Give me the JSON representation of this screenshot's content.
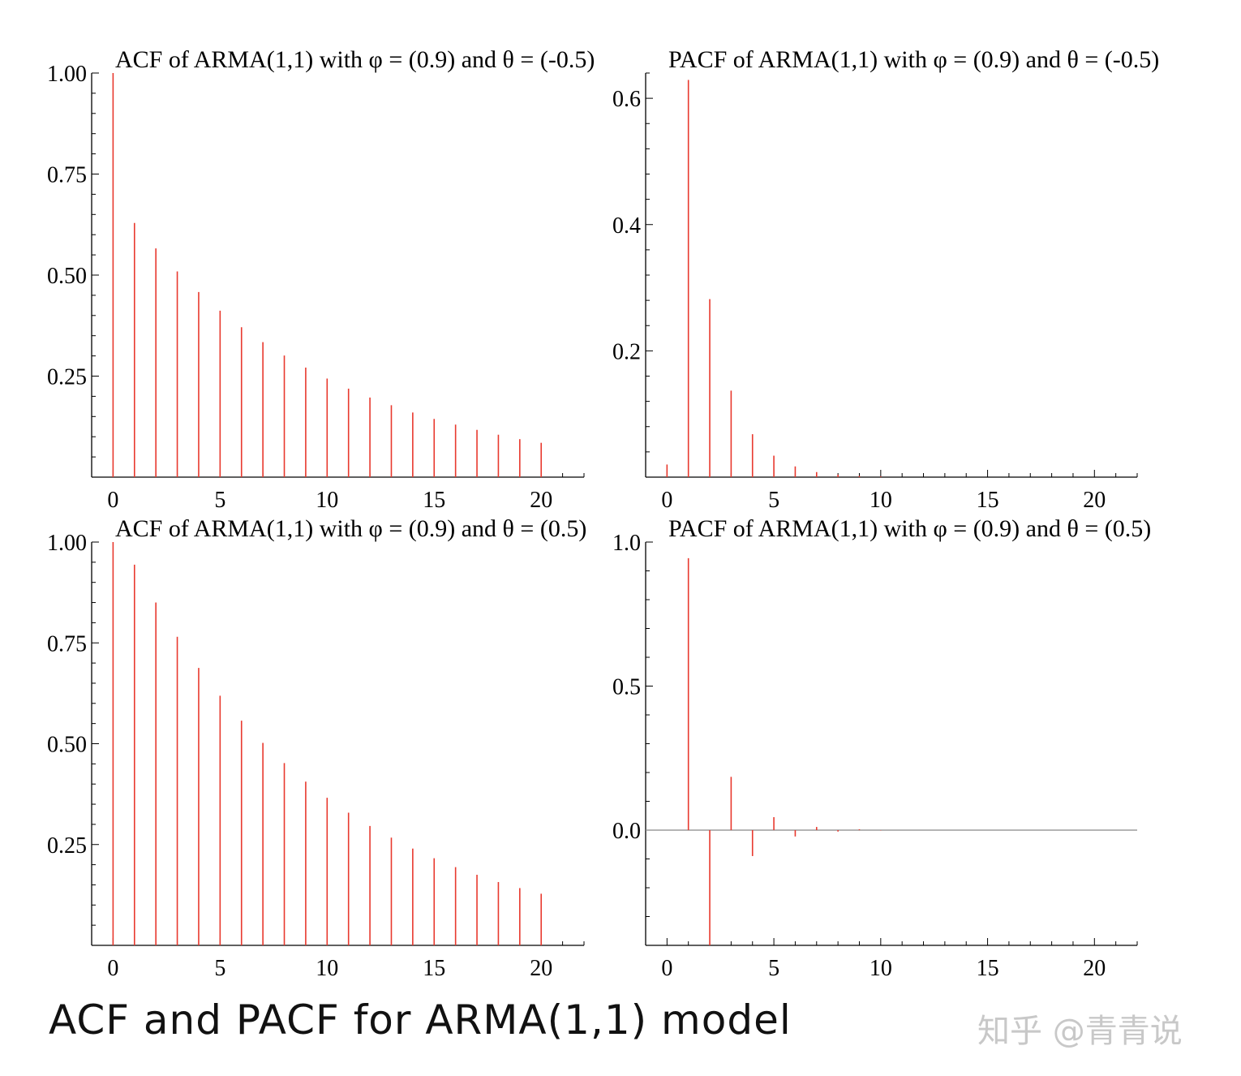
{
  "chart_data": [
    {
      "type": "bar",
      "title": "ACF of ARMA(1,1) with φ = (0.9) and θ = (-0.5)",
      "xlabel": "",
      "ylabel": "",
      "x": [
        0,
        1,
        2,
        3,
        4,
        5,
        6,
        7,
        8,
        9,
        10,
        11,
        12,
        13,
        14,
        15,
        16,
        17,
        18,
        19,
        20
      ],
      "values": [
        1.0,
        0.629,
        0.566,
        0.509,
        0.458,
        0.412,
        0.371,
        0.334,
        0.301,
        0.271,
        0.244,
        0.219,
        0.197,
        0.178,
        0.16,
        0.144,
        0.13,
        0.117,
        0.105,
        0.094,
        0.085
      ],
      "xlim": [
        -1,
        22
      ],
      "ylim": [
        0,
        1.0
      ],
      "xticks": [
        0,
        5,
        10,
        15,
        20
      ],
      "xtick_labels": [
        "0",
        "5",
        "10",
        "15",
        "20"
      ],
      "yticks": [
        0.25,
        0.5,
        0.75,
        1.0
      ],
      "ytick_labels": [
        "0.25",
        "0.50",
        "0.75",
        "1.00"
      ],
      "color": "#e8392e",
      "grid": false
    },
    {
      "type": "bar",
      "title": "PACF of ARMA(1,1) with φ = (0.9) and θ = (-0.5)",
      "xlabel": "",
      "ylabel": "",
      "x": [
        0,
        1,
        2,
        3,
        4,
        5,
        6,
        7,
        8,
        9,
        10,
        11,
        12,
        13,
        14,
        15,
        16,
        17,
        18,
        19,
        20
      ],
      "values": [
        0.02,
        0.629,
        0.282,
        0.137,
        0.068,
        0.034,
        0.017,
        0.008,
        0.004,
        0.002,
        0.001,
        0,
        0,
        0,
        0,
        0,
        0,
        0,
        0,
        0,
        0
      ],
      "xlim": [
        -1,
        22
      ],
      "ylim": [
        0,
        0.64
      ],
      "xticks": [
        0,
        5,
        10,
        15,
        20
      ],
      "xtick_labels": [
        "0",
        "5",
        "10",
        "15",
        "20"
      ],
      "yticks": [
        0.2,
        0.4,
        0.6
      ],
      "ytick_labels": [
        "0.2",
        "0.4",
        "0.6"
      ],
      "color": "#e8392e",
      "grid": false
    },
    {
      "type": "bar",
      "title": "ACF of ARMA(1,1) with φ = (0.9) and θ = (0.5)",
      "xlabel": "",
      "ylabel": "",
      "x": [
        0,
        1,
        2,
        3,
        4,
        5,
        6,
        7,
        8,
        9,
        10,
        11,
        12,
        13,
        14,
        15,
        16,
        17,
        18,
        19,
        20
      ],
      "values": [
        1.0,
        0.944,
        0.85,
        0.765,
        0.688,
        0.619,
        0.557,
        0.502,
        0.452,
        0.406,
        0.366,
        0.329,
        0.296,
        0.267,
        0.24,
        0.216,
        0.194,
        0.175,
        0.157,
        0.142,
        0.128
      ],
      "xlim": [
        -1,
        22
      ],
      "ylim": [
        0,
        1.0
      ],
      "xticks": [
        0,
        5,
        10,
        15,
        20
      ],
      "xtick_labels": [
        "0",
        "5",
        "10",
        "15",
        "20"
      ],
      "yticks": [
        0.25,
        0.5,
        0.75,
        1.0
      ],
      "ytick_labels": [
        "0.25",
        "0.50",
        "0.75",
        "1.00"
      ],
      "color": "#e8392e",
      "grid": false
    },
    {
      "type": "bar",
      "title": "PACF of ARMA(1,1) with φ = (0.9) and θ = (0.5)",
      "xlabel": "",
      "ylabel": "",
      "x": [
        0,
        1,
        2,
        3,
        4,
        5,
        6,
        7,
        8,
        9,
        10,
        11,
        12,
        13,
        14,
        15,
        16,
        17,
        18,
        19,
        20
      ],
      "values": [
        0,
        0.944,
        -0.4,
        0.185,
        -0.09,
        0.045,
        -0.022,
        0.011,
        -0.005,
        0.003,
        -0.001,
        0,
        0,
        0,
        0,
        0,
        0,
        0,
        0,
        0,
        0
      ],
      "xlim": [
        -1,
        22
      ],
      "ylim": [
        -0.4,
        1.0
      ],
      "xticks": [
        0,
        5,
        10,
        15,
        20
      ],
      "xtick_labels": [
        "0",
        "5",
        "10",
        "15",
        "20"
      ],
      "yticks": [
        0.0,
        0.5,
        1.0
      ],
      "ytick_labels": [
        "0.0",
        "0.5",
        "1.0"
      ],
      "zero_line": true,
      "color": "#e8392e",
      "grid": false
    }
  ],
  "caption": "ACF and PACF for ARMA(1,1) model",
  "watermark": "知乎 @青青说"
}
